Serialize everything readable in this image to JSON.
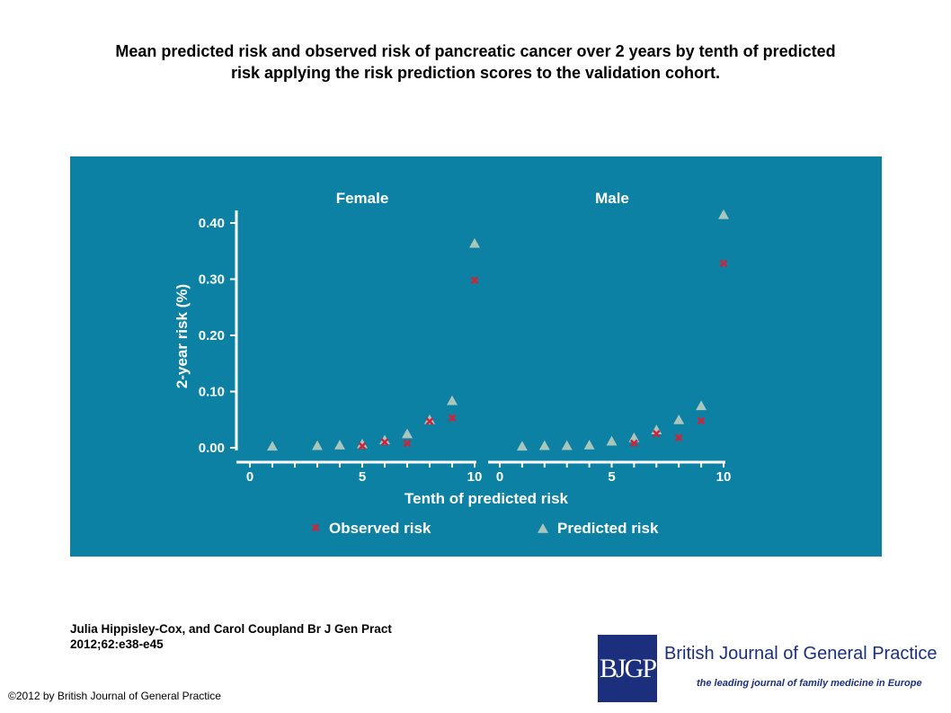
{
  "page": {
    "title_line1": "Mean predicted risk and observed risk of pancreatic cancer over 2 years by tenth of predicted",
    "title_line2": "risk applying the risk prediction scores to the validation cohort.",
    "citation_line1": "Julia Hippisley-Cox, and Carol Coupland Br J Gen Pract",
    "citation_line2": "2012;62:e38-e45",
    "copyright": "©2012 by British Journal of General Practice"
  },
  "logo": {
    "mark": "BJGP",
    "name": "British Journal of General Practice",
    "tagline": "the leading journal of family medicine in Europe"
  },
  "colors": {
    "panel_bg": "#0c81a3",
    "observed": "#d0233a",
    "predicted": "#a9c6bd",
    "axis_text": "#ffffff"
  },
  "chart_data": {
    "type": "scatter",
    "ylabel": "2-year risk (%)",
    "xlabel": "Tenth of predicted risk",
    "ylim": [
      0,
      0.4
    ],
    "yticks": [
      "0.00",
      "0.10",
      "0.20",
      "0.30",
      "0.40"
    ],
    "xticks": [
      "0",
      "5",
      "10"
    ],
    "legend_position": "bottom",
    "legend": [
      "Observed risk",
      "Predicted risk"
    ],
    "panels": [
      {
        "title": "Female",
        "xlim": [
          0,
          10
        ],
        "series": [
          {
            "name": "Observed risk",
            "marker": "x",
            "points": [
              [
                5,
                0.003
              ],
              [
                6,
                0.01
              ],
              [
                7,
                0.008
              ],
              [
                8,
                0.047
              ],
              [
                9,
                0.053
              ],
              [
                10,
                0.298
              ]
            ]
          },
          {
            "name": "Predicted risk",
            "marker": "triangle",
            "points": [
              [
                1,
                0.001
              ],
              [
                3,
                0.002
              ],
              [
                4,
                0.003
              ],
              [
                5,
                0.005
              ],
              [
                6,
                0.012
              ],
              [
                7,
                0.023
              ],
              [
                8,
                0.048
              ],
              [
                9,
                0.082
              ],
              [
                10,
                0.362
              ]
            ]
          }
        ]
      },
      {
        "title": "Male",
        "xlim": [
          0,
          10
        ],
        "series": [
          {
            "name": "Observed risk",
            "marker": "x",
            "points": [
              [
                6,
                0.008
              ],
              [
                7,
                0.025
              ],
              [
                8,
                0.018
              ],
              [
                9,
                0.048
              ],
              [
                10,
                0.328
              ]
            ]
          },
          {
            "name": "Predicted risk",
            "marker": "triangle",
            "points": [
              [
                1,
                0.001
              ],
              [
                2,
                0.002
              ],
              [
                3,
                0.002
              ],
              [
                4,
                0.003
              ],
              [
                5,
                0.01
              ],
              [
                6,
                0.016
              ],
              [
                7,
                0.03
              ],
              [
                8,
                0.048
              ],
              [
                9,
                0.073
              ],
              [
                10,
                0.413
              ]
            ]
          }
        ]
      }
    ]
  }
}
